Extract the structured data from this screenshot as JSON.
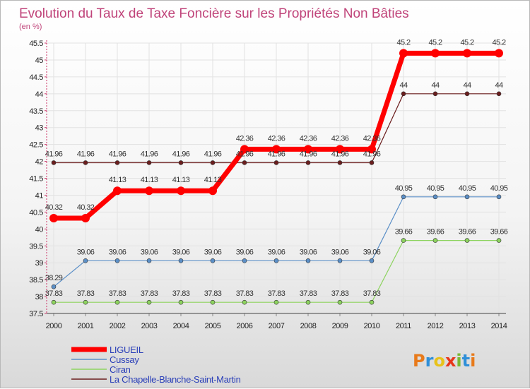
{
  "chart_data": {
    "type": "line",
    "title": "Evolution du Taux de Taxe Foncière sur les Propriétés Non Bâties",
    "subtitle": "(en %)",
    "x": [
      "2000",
      "2001",
      "2002",
      "2003",
      "2004",
      "2005",
      "2006",
      "2007",
      "2008",
      "2009",
      "2010",
      "2011",
      "2012",
      "2013",
      "2014"
    ],
    "ylim": [
      37.5,
      45.5
    ],
    "yticks": [
      "37.5",
      "38",
      "38.5",
      "39",
      "39.5",
      "40",
      "40.5",
      "41",
      "41.5",
      "42",
      "42.5",
      "43",
      "43.5",
      "44",
      "44.5",
      "45",
      "45.5"
    ],
    "grid": true,
    "legend_position": "bottom-left",
    "series": [
      {
        "name": "LIGUEIL",
        "color": "#ff0000",
        "values": [
          40.32,
          40.32,
          41.13,
          41.13,
          41.13,
          41.13,
          42.36,
          42.36,
          42.36,
          42.36,
          42.36,
          45.2,
          45.2,
          45.2,
          45.2
        ],
        "labels": [
          "40.32",
          "40.32",
          "41.13",
          "41.13",
          "41.13",
          "41.13",
          "42.36",
          "42.36",
          "42.36",
          "42.36",
          "42.36",
          "45.2",
          "45.2",
          "45.2",
          "45.2"
        ]
      },
      {
        "name": "Cussay",
        "color": "#5b8fc7",
        "values": [
          38.29,
          39.06,
          39.06,
          39.06,
          39.06,
          39.06,
          39.06,
          39.06,
          39.06,
          39.06,
          39.06,
          40.95,
          40.95,
          40.95,
          40.95
        ],
        "labels": [
          "38.29",
          "39.06",
          "39.06",
          "39.06",
          "39.06",
          "39.06",
          "39.06",
          "39.06",
          "39.06",
          "39.06",
          "39.06",
          "40.95",
          "40.95",
          "40.95",
          "40.95"
        ]
      },
      {
        "name": "Ciran",
        "color": "#8dd35f",
        "values": [
          37.83,
          37.83,
          37.83,
          37.83,
          37.83,
          37.83,
          37.83,
          37.83,
          37.83,
          37.83,
          37.83,
          39.66,
          39.66,
          39.66,
          39.66
        ],
        "labels": [
          "37.83",
          "37.83",
          "37.83",
          "37.83",
          "37.83",
          "37.83",
          "37.83",
          "37.83",
          "37.83",
          "37.83",
          "37.83",
          "39.66",
          "39.66",
          "39.66",
          "39.66"
        ]
      },
      {
        "name": "La Chapelle-Blanche-Saint-Martin",
        "color": "#6b1e1e",
        "values": [
          41.96,
          41.96,
          41.96,
          41.96,
          41.96,
          41.96,
          41.96,
          41.96,
          41.96,
          41.96,
          41.96,
          44,
          44,
          44,
          44
        ],
        "labels": [
          "41.96",
          "41.96",
          "41.96",
          "41.96",
          "41.96",
          "41.96",
          "41.96",
          "41.96",
          "41.96",
          "41.96",
          "41.96",
          "44",
          "44",
          "44",
          "44"
        ]
      }
    ]
  },
  "logo": {
    "text": "Proxiti",
    "letters": [
      "P",
      "r",
      "o",
      "x",
      "i",
      "t",
      "i"
    ],
    "colors": [
      "#e87a1a",
      "#2f8fd8",
      "#e8c21a",
      "#e8351a",
      "#7ab832",
      "#2f8fd8",
      "#e87a1a"
    ]
  }
}
